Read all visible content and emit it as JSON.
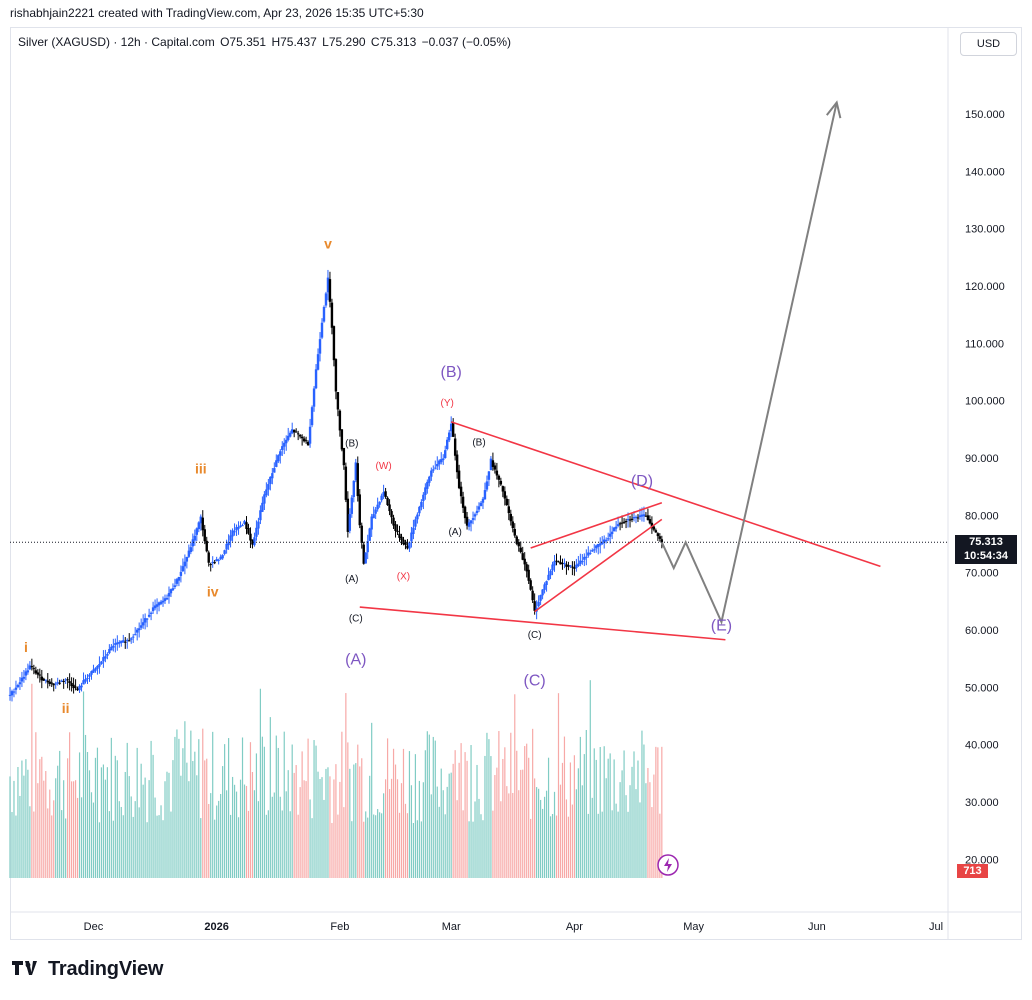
{
  "header": {
    "caption": "rishabhjain2221 created with TradingView.com, Apr 23, 2026 15:35 UTC+5:30"
  },
  "symbol": {
    "name": "Silver (XAGUSD) · 12h · Capital.com",
    "open": "O75.351",
    "high": "H75.437",
    "low": "L75.290",
    "close": "C75.313",
    "change": "−0.037 (−0.05%)",
    "change_color": "#131722"
  },
  "currency_button": "USD",
  "last_price": {
    "value": "75.313",
    "countdown": "10:54:34"
  },
  "volume_tag": "713",
  "brand": "TradingView",
  "colors": {
    "up": "#2962ff",
    "down": "#000000",
    "vol_up": "#80ccc4",
    "vol_down": "#f7a9a7",
    "trendline": "#f23645",
    "projection": "#808080",
    "wave_orange": "#e8892c",
    "wave_purple": "#7e57c2",
    "wave_red": "#f23645",
    "wave_black": "#131722"
  },
  "chart_data": {
    "type": "line",
    "title": "Silver (XAGUSD) · 12h · Capital.com",
    "xlabel": "",
    "ylabel": "",
    "y_tick_labels": [
      "20.000",
      "30.000",
      "40.000",
      "50.000",
      "60.000",
      "70.000",
      "80.000",
      "90.000",
      "100.000",
      "110.000",
      "120.000",
      "130.000",
      "140.000",
      "150.000"
    ],
    "y_ticks": [
      20,
      30,
      40,
      50,
      60,
      70,
      80,
      90,
      100,
      110,
      120,
      130,
      140,
      150
    ],
    "ylim": [
      18,
      162
    ],
    "x_tick_labels": [
      "Dec",
      "2026",
      "Feb",
      "Mar",
      "Apr",
      "May",
      "Jun",
      "Jul"
    ],
    "x_ticks": [
      "2025-12-01",
      "2026-01-01",
      "2026-02-01",
      "2026-03-01",
      "2026-04-01",
      "2026-05-01",
      "2026-06-01",
      "2026-07-01"
    ],
    "xlim": [
      "2025-11-10",
      "2026-07-04"
    ],
    "grid": false,
    "series": [
      {
        "name": "",
        "points": [
          [
            "2025-11-10",
            48.6
          ],
          [
            "2025-11-13",
            51.5
          ],
          [
            "2025-11-15",
            53.7
          ],
          [
            "2025-11-18",
            51.5
          ],
          [
            "2025-11-21",
            50.5
          ],
          [
            "2025-11-24",
            51.4
          ],
          [
            "2025-11-27",
            49.5
          ],
          [
            "2025-11-29",
            51.5
          ],
          [
            "2025-12-02",
            53.6
          ],
          [
            "2025-12-06",
            57.4
          ],
          [
            "2025-12-10",
            58.3
          ],
          [
            "2025-12-13",
            60.8
          ],
          [
            "2025-12-16",
            63.8
          ],
          [
            "2025-12-19",
            65.3
          ],
          [
            "2025-12-22",
            68.6
          ],
          [
            "2025-12-25",
            73.6
          ],
          [
            "2025-12-28",
            79.6
          ],
          [
            "2025-12-30",
            71.5
          ],
          [
            "2026-01-02",
            72.5
          ],
          [
            "2026-01-05",
            77.1
          ],
          [
            "2026-01-08",
            78.8
          ],
          [
            "2026-01-10",
            74.8
          ],
          [
            "2026-01-13",
            83.5
          ],
          [
            "2026-01-17",
            91.4
          ],
          [
            "2026-01-20",
            94.9
          ],
          [
            "2026-01-24",
            92.5
          ],
          [
            "2026-01-26",
            105.4
          ],
          [
            "2026-01-28",
            116.6
          ],
          [
            "2026-01-29",
            121.2
          ],
          [
            "2026-01-30",
            113.0
          ],
          [
            "2026-01-31",
            101.5
          ],
          [
            "2026-02-02",
            88.5
          ],
          [
            "2026-02-03",
            77.3
          ],
          [
            "2026-02-05",
            89.1
          ],
          [
            "2026-02-06",
            78.2
          ],
          [
            "2026-02-07",
            71.6
          ],
          [
            "2026-02-09",
            79.5
          ],
          [
            "2026-02-12",
            84.2
          ],
          [
            "2026-02-15",
            77.3
          ],
          [
            "2026-02-18",
            74.2
          ],
          [
            "2026-02-20",
            79.3
          ],
          [
            "2026-02-24",
            87.8
          ],
          [
            "2026-02-27",
            90.0
          ],
          [
            "2026-03-01",
            96.2
          ],
          [
            "2026-03-03",
            85.0
          ],
          [
            "2026-03-05",
            78.0
          ],
          [
            "2026-03-09",
            82.8
          ],
          [
            "2026-03-11",
            89.6
          ],
          [
            "2026-03-14",
            84.2
          ],
          [
            "2026-03-17",
            76.3
          ],
          [
            "2026-03-20",
            70.5
          ],
          [
            "2026-03-22",
            63.2
          ],
          [
            "2026-03-24",
            67.0
          ],
          [
            "2026-03-27",
            72.1
          ],
          [
            "2026-04-01",
            70.8
          ],
          [
            "2026-04-05",
            73.7
          ],
          [
            "2026-04-09",
            75.8
          ],
          [
            "2026-04-12",
            78.6
          ],
          [
            "2026-04-15",
            79.4
          ],
          [
            "2026-04-19",
            80.0
          ],
          [
            "2026-04-21",
            77.4
          ],
          [
            "2026-04-23",
            75.3
          ]
        ]
      },
      {
        "name": "",
        "points": [
          [
            "2026-04-23",
            75.3
          ],
          [
            "2026-04-26",
            70.8
          ],
          [
            "2026-04-29",
            75.3
          ],
          [
            "2026-05-08",
            61.4
          ],
          [
            "2026-06-06",
            152.0
          ]
        ]
      }
    ]
  },
  "wave_labels": [
    {
      "text": "i",
      "date": "2025-11-14",
      "price": 56.2,
      "color": "orange",
      "size": "s"
    },
    {
      "text": "ii",
      "date": "2025-11-24",
      "price": 45.5,
      "color": "orange",
      "size": "s"
    },
    {
      "text": "iii",
      "date": "2025-12-28",
      "price": 87.3,
      "color": "orange",
      "size": "s"
    },
    {
      "text": "iv",
      "date": "2025-12-31",
      "price": 65.8,
      "color": "orange",
      "size": "s"
    },
    {
      "text": "v",
      "date": "2026-01-29",
      "price": 126.5,
      "color": "orange",
      "size": "s"
    },
    {
      "text": "(A)",
      "date": "2026-02-05",
      "price": 54.0,
      "color": "purple",
      "size": "l"
    },
    {
      "text": "(B)",
      "date": "2026-03-01",
      "price": 104.1,
      "color": "purple",
      "size": "l"
    },
    {
      "text": "(C)",
      "date": "2026-03-22",
      "price": 50.3,
      "color": "purple",
      "size": "l"
    },
    {
      "text": "(D)",
      "date": "2026-04-18",
      "price": 85.1,
      "color": "purple",
      "size": "l"
    },
    {
      "text": "(E)",
      "date": "2026-05-08",
      "price": 59.9,
      "color": "purple",
      "size": "l"
    },
    {
      "text": "(W)",
      "date": "2026-02-12",
      "price": 88.1,
      "color": "red",
      "size": "xs"
    },
    {
      "text": "(X)",
      "date": "2026-02-17",
      "price": 68.8,
      "color": "red",
      "size": "xs"
    },
    {
      "text": "(Y)",
      "date": "2026-02-28",
      "price": 99.1,
      "color": "red",
      "size": "xs"
    },
    {
      "text": "(B)",
      "date": "2026-02-04",
      "price": 92.0,
      "color": "black",
      "size": "xs"
    },
    {
      "text": "(A)",
      "date": "2026-02-04",
      "price": 68.4,
      "color": "black",
      "size": "xs"
    },
    {
      "text": "(C)",
      "date": "2026-02-05",
      "price": 61.5,
      "color": "black",
      "size": "xs"
    },
    {
      "text": "(B)",
      "date": "2026-03-08",
      "price": 92.2,
      "color": "black",
      "size": "xs"
    },
    {
      "text": "(A)",
      "date": "2026-03-02",
      "price": 76.6,
      "color": "black",
      "size": "xs"
    },
    {
      "text": "(C)",
      "date": "2026-03-22",
      "price": 58.6,
      "color": "black",
      "size": "xs"
    }
  ],
  "trendlines": [
    {
      "from": [
        "2026-02-06",
        64.0
      ],
      "to": [
        "2026-05-09",
        58.3
      ]
    },
    {
      "from": [
        "2026-03-01",
        96.3
      ],
      "to": [
        "2026-06-17",
        71.1
      ]
    },
    {
      "from": [
        "2026-03-21",
        74.3
      ],
      "to": [
        "2026-04-23",
        82.2
      ]
    },
    {
      "from": [
        "2026-03-22",
        63.2
      ],
      "to": [
        "2026-04-23",
        79.3
      ]
    }
  ]
}
